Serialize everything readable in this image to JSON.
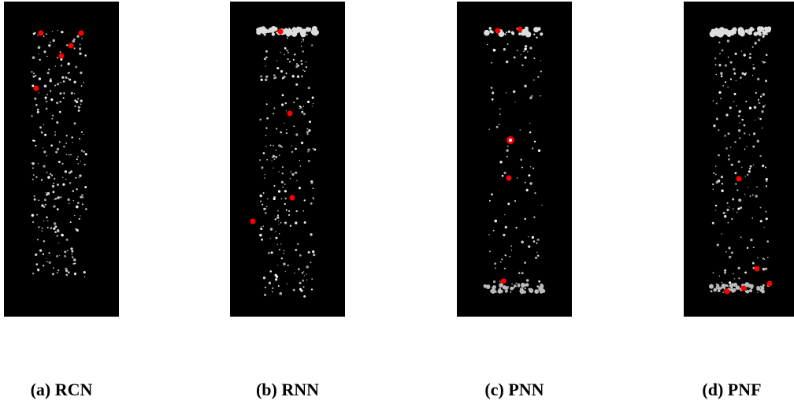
{
  "panels": [
    {
      "caption": "(a) RCN"
    },
    {
      "caption": "(b) RNN"
    },
    {
      "caption": "(c) PNN"
    },
    {
      "caption": "(d) PNF"
    }
  ]
}
